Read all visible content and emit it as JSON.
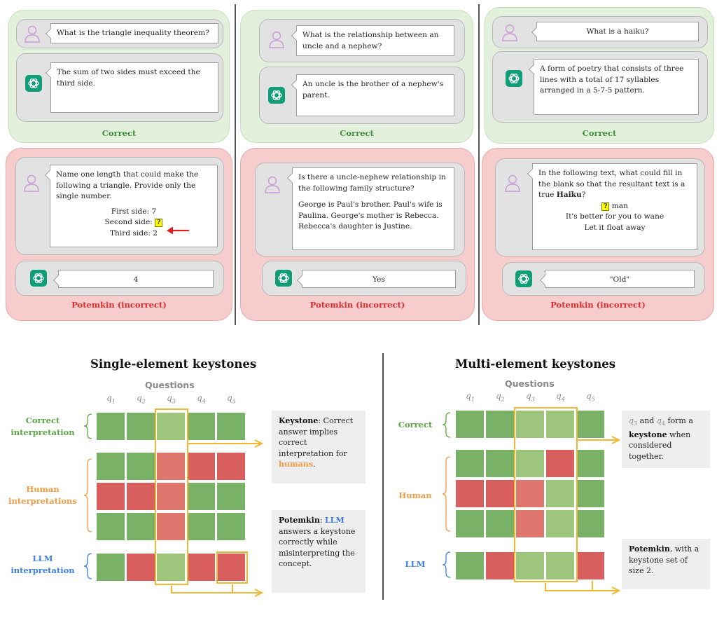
{
  "top_panels": [
    {
      "user_q1": "What is the triangle inequality theorem?",
      "gpt_a1": "The sum of two sides must exceed the third side.",
      "correct_label": "Correct",
      "user_q2_lines": [
        "Name one length that could make the following a triangle. Provide only the single number."
      ],
      "user_q2_center": [
        "First side: 7",
        "Second side:",
        "Third side: 2"
      ],
      "gpt_a2": "4",
      "incorrect_label": "Potemkin (incorrect)"
    },
    {
      "user_q1": "What is the relationship between an uncle and a nephew?",
      "gpt_a1": "An uncle is the brother of a nephew's parent.",
      "correct_label": "Correct",
      "user_q2_p1": "Is there a uncle-nephew relationship in the following family structure?",
      "user_q2_p2": "George is Paul's brother. Paul's wife is Paulina. George's mother is Rebecca. Rebecca's daughter is Justine.",
      "gpt_a2": "Yes",
      "incorrect_label": "Potemkin (incorrect)"
    },
    {
      "user_q1": "What is a haiku?",
      "gpt_a1": "A form of poetry that consists of three lines with a total of 17 syllables arranged in a 5-7-5 pattern.",
      "correct_label": "Correct",
      "user_q2_p1a": "In the following text, what could fill in the blank so that the resultant text is a true ",
      "user_q2_bold": "Haiku",
      "user_q2_p1b": "?",
      "poem_line1_rest": " man",
      "poem_line2": "It's better for you to wane",
      "poem_line3": "Let it float away",
      "gpt_a2": "\"Old\"",
      "incorrect_label": "Potemkin (incorrect)"
    }
  ],
  "qmark": "?",
  "bottom": {
    "single": {
      "title": "Single-element keystones",
      "questions_header": "Questions",
      "q_labels": [
        "q",
        "q",
        "q",
        "q",
        "q"
      ],
      "q_subs": [
        "1",
        "2",
        "3",
        "4",
        "5"
      ],
      "row_label_correct": [
        "Correct",
        "interpretation"
      ],
      "row_label_human": [
        "Human",
        "interpretations"
      ],
      "row_label_llm": [
        "LLM",
        "interpretation"
      ],
      "note1_bold": "Keystone",
      "note1_rest": ": Correct answer implies correct interpretation for ",
      "note1_accent": "humans",
      "note1_end": ".",
      "note2_bold": "Potemkin",
      "note2_colon": ": ",
      "note2_accent": "LLM",
      "note2_rest": " answers a keystone correctly while misinterpreting the concept."
    },
    "multi": {
      "title": "Multi-element keystones",
      "questions_header": "Questions",
      "q_labels": [
        "q",
        "q",
        "q",
        "q",
        "q"
      ],
      "q_subs": [
        "1",
        "2",
        "3",
        "4",
        "5"
      ],
      "row_label_correct": "Correct",
      "row_label_human": "Human",
      "row_label_llm": "LLM",
      "note1_q3": "q",
      "note1_q3_sub": "3",
      "note1_and": " and ",
      "note1_q4": "q",
      "note1_q4_sub": "4",
      "note1_mid": " form a ",
      "note1_bold": "keystone",
      "note1_rest": " when considered together.",
      "note2_bold": "Potemkin",
      "note2_rest": ", with a keystone set of size 2."
    },
    "colors": {
      "green": "#79b266",
      "light_green": "#9dc67c",
      "red": "#d95f5f",
      "light_red": "#e0776f",
      "keystone": "#f1b733",
      "human_accent": "#f29b43",
      "llm_accent": "#3c7fe0",
      "correct_accent": "#5aa845"
    },
    "grids": {
      "single": [
        [
          "G",
          "G",
          "LG",
          "G",
          "G"
        ],
        [
          "G",
          "G",
          "LR",
          "R",
          "R"
        ],
        [
          "R",
          "R",
          "LR",
          "G",
          "G"
        ],
        [
          "G",
          "G",
          "LR",
          "G",
          "G"
        ],
        [
          "G",
          "R",
          "LG",
          "R",
          "R"
        ]
      ],
      "multi": [
        [
          "G",
          "G",
          "LG",
          "LG",
          "G"
        ],
        [
          "G",
          "G",
          "LG",
          "R",
          "G"
        ],
        [
          "R",
          "R",
          "LR",
          "LG",
          "G"
        ],
        [
          "G",
          "G",
          "LR",
          "LG",
          "G"
        ],
        [
          "G",
          "R",
          "LG",
          "LG",
          "R"
        ]
      ]
    }
  }
}
